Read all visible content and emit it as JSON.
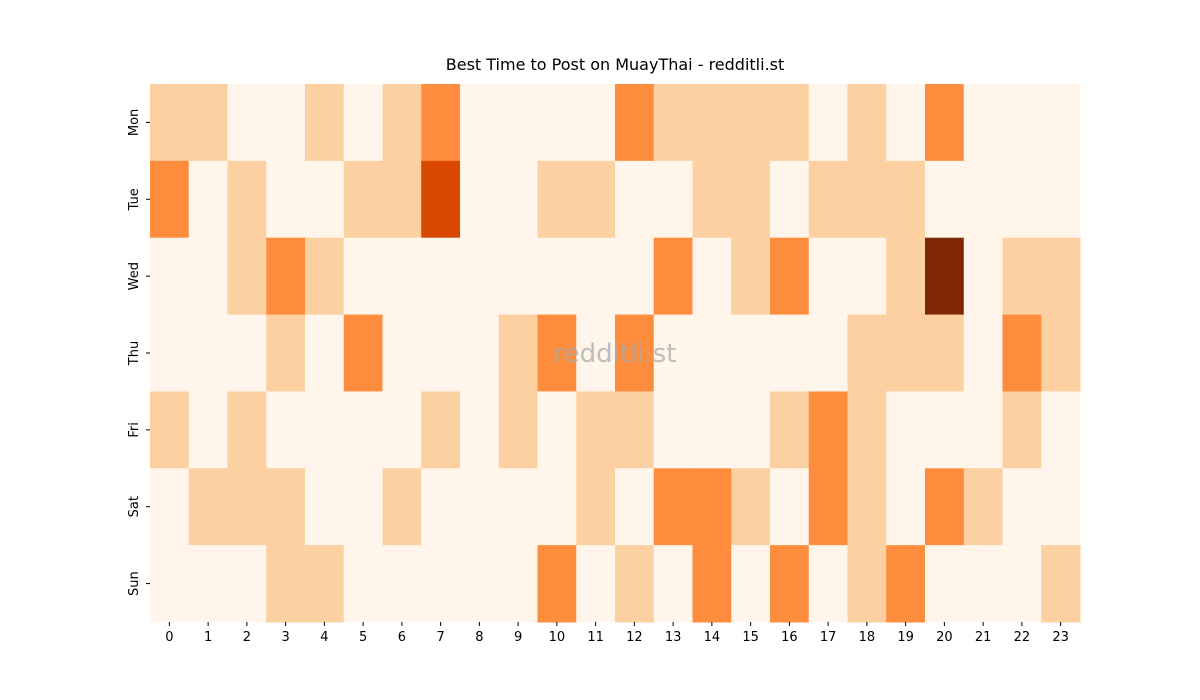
{
  "chart_data": {
    "type": "heatmap",
    "title": "Best Time to Post on MuayThai - redditli.st",
    "watermark": "redditli.st",
    "x": [
      0,
      1,
      2,
      3,
      4,
      5,
      6,
      7,
      8,
      9,
      10,
      11,
      12,
      13,
      14,
      15,
      16,
      17,
      18,
      19,
      20,
      21,
      22,
      23
    ],
    "y": [
      "Mon",
      "Tue",
      "Wed",
      "Thu",
      "Fri",
      "Sat",
      "Sun"
    ],
    "values": [
      [
        1,
        1,
        0,
        0,
        1,
        0,
        1,
        2,
        0,
        0,
        0,
        0,
        2,
        1,
        1,
        1,
        1,
        0,
        1,
        0,
        2,
        0,
        0,
        0
      ],
      [
        2,
        0,
        1,
        0,
        0,
        1,
        1,
        3,
        0,
        0,
        1,
        1,
        0,
        0,
        1,
        1,
        0,
        1,
        1,
        1,
        0,
        0,
        0,
        0
      ],
      [
        0,
        0,
        1,
        2,
        1,
        0,
        0,
        0,
        0,
        0,
        0,
        0,
        0,
        2,
        0,
        1,
        2,
        0,
        0,
        1,
        4,
        0,
        1,
        1
      ],
      [
        0,
        0,
        0,
        1,
        0,
        2,
        0,
        0,
        0,
        1,
        2,
        0,
        2,
        0,
        0,
        0,
        0,
        0,
        1,
        1,
        1,
        0,
        2,
        1
      ],
      [
        1,
        0,
        1,
        0,
        0,
        0,
        0,
        1,
        0,
        1,
        0,
        1,
        1,
        0,
        0,
        0,
        1,
        2,
        1,
        0,
        0,
        0,
        1,
        0
      ],
      [
        0,
        1,
        1,
        1,
        0,
        0,
        1,
        0,
        0,
        0,
        0,
        1,
        0,
        2,
        2,
        1,
        0,
        2,
        1,
        0,
        2,
        1,
        0,
        0
      ],
      [
        0,
        0,
        0,
        1,
        1,
        0,
        0,
        0,
        0,
        0,
        2,
        0,
        1,
        0,
        2,
        0,
        2,
        0,
        1,
        2,
        0,
        0,
        0,
        1
      ]
    ],
    "vlim": [
      0,
      4
    ],
    "colors": [
      "#fff5eb",
      "#fdd0a2",
      "#fd8d3c",
      "#d94801",
      "#7f2704"
    ]
  }
}
